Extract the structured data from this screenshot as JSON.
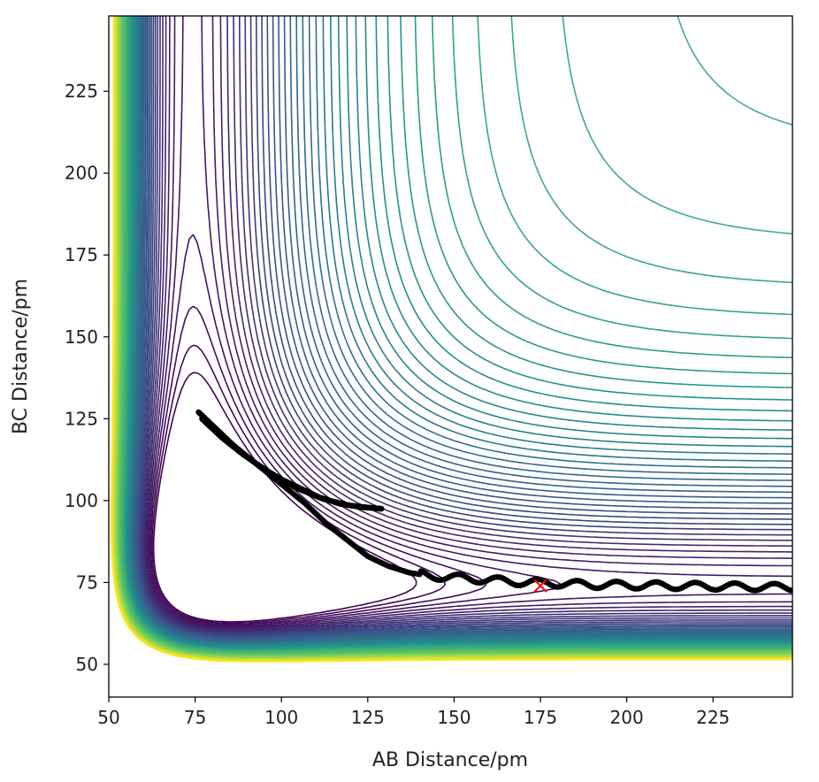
{
  "chart_data": {
    "type": "contour",
    "title": "",
    "xlabel": "AB Distance/pm",
    "ylabel": "BC Distance/pm",
    "xlim": [
      50,
      248
    ],
    "ylim": [
      40,
      248
    ],
    "x_ticks": [
      50,
      75,
      100,
      125,
      150,
      175,
      200,
      225
    ],
    "y_ticks": [
      50,
      75,
      100,
      125,
      150,
      175,
      200,
      225
    ],
    "colormap": "viridis",
    "colormap_stops": [
      "#440154",
      "#3b528b",
      "#21918c",
      "#5ec962",
      "#fde725"
    ],
    "grid": false,
    "legend": "none",
    "surface": {
      "description_type": "LEPS-like potential energy surface",
      "well_AB_distance": 74,
      "well_BC_distance": 74,
      "contour_levels": 60
    },
    "trajectory": {
      "color": "#000000",
      "points": [
        [
          76,
          127
        ],
        [
          79,
          124
        ],
        [
          83,
          120
        ],
        [
          88,
          115
        ],
        [
          93,
          111
        ],
        [
          99,
          107
        ],
        [
          105,
          104
        ],
        [
          111,
          101
        ],
        [
          117,
          99
        ],
        [
          123,
          98
        ],
        [
          129,
          97.5
        ],
        [
          126,
          97.8
        ],
        [
          120,
          98.5
        ],
        [
          112,
          100.5
        ],
        [
          104,
          104
        ],
        [
          96,
          109
        ],
        [
          89,
          114
        ],
        [
          83,
          119
        ],
        [
          79,
          123
        ],
        [
          77,
          125
        ],
        [
          80,
          122
        ],
        [
          86,
          117
        ],
        [
          93,
          111
        ],
        [
          100,
          105
        ],
        [
          107,
          99
        ],
        [
          113,
          93
        ],
        [
          119,
          88
        ],
        [
          125,
          83
        ],
        [
          131,
          80
        ],
        [
          137,
          78
        ],
        [
          143,
          77
        ],
        [
          150,
          76.5
        ],
        [
          157,
          76
        ],
        [
          164,
          75.5
        ],
        [
          171,
          75
        ],
        [
          178,
          74.8
        ],
        [
          185,
          74.5
        ],
        [
          192,
          74.3
        ],
        [
          199,
          74.2
        ],
        [
          206,
          74.1
        ],
        [
          213,
          74
        ],
        [
          220,
          73.9
        ],
        [
          227,
          73.8
        ],
        [
          234,
          73.7
        ],
        [
          241,
          73.6
        ],
        [
          248,
          73.5
        ]
      ]
    },
    "marker": {
      "symbol": "x",
      "color": "#ff0000",
      "x": 175,
      "y": 74
    }
  }
}
